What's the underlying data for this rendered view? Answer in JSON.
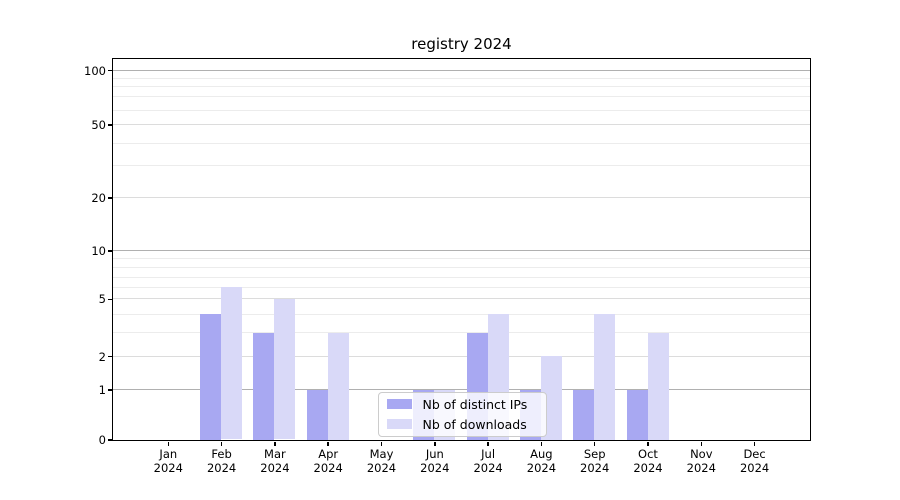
{
  "title": "registry 2024",
  "legend": {
    "items": [
      {
        "label": "Nb of distinct IPs",
        "color": "#a8a8f2"
      },
      {
        "label": "Nb of downloads",
        "color": "#d9d9f8"
      }
    ]
  },
  "chart_data": {
    "type": "bar",
    "title": "registry 2024",
    "xlabel": "",
    "ylabel": "",
    "year": "2024",
    "categories": [
      "Jan",
      "Feb",
      "Mar",
      "Apr",
      "May",
      "Jun",
      "Jul",
      "Aug",
      "Sep",
      "Oct",
      "Nov",
      "Dec"
    ],
    "series": [
      {
        "name": "Nb of distinct IPs",
        "color": "#a8a8f2",
        "values": [
          0,
          4,
          3,
          1,
          0,
          1,
          3,
          1,
          1,
          1,
          0,
          0
        ]
      },
      {
        "name": "Nb of downloads",
        "color": "#d9d9f8",
        "values": [
          0,
          6,
          5,
          3,
          0,
          1,
          4,
          2,
          4,
          3,
          0,
          0
        ]
      }
    ],
    "yscale": "symlog",
    "ylim": [
      0,
      120
    ],
    "y_major_ticks": [
      0,
      1,
      2,
      5,
      10,
      20,
      50,
      100
    ],
    "y_tick_labels": [
      "0",
      "1",
      "2",
      "5",
      "10",
      "20",
      "50",
      "100"
    ],
    "grid": true,
    "legend_position": "lower center"
  }
}
